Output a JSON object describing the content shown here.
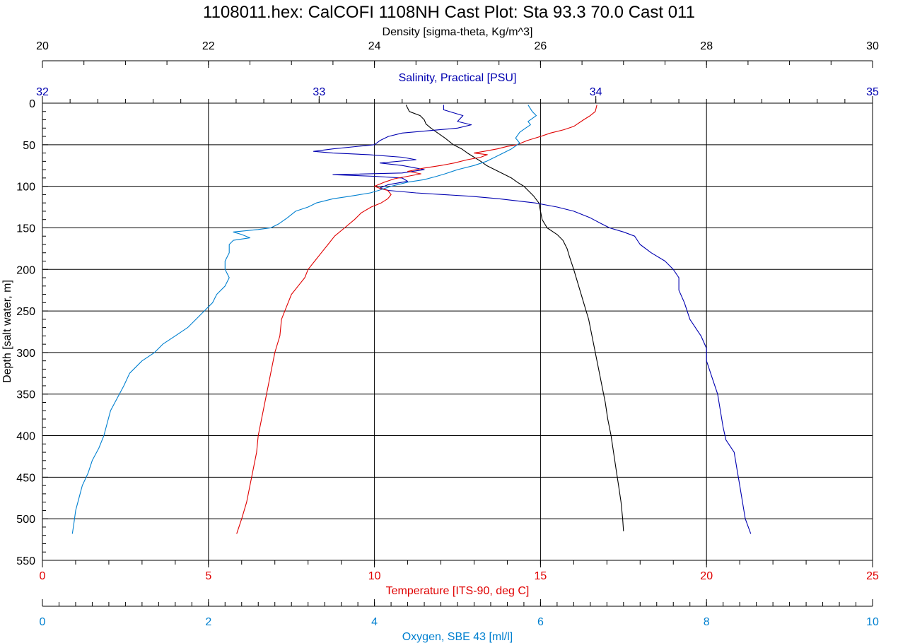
{
  "chart_data": {
    "type": "line",
    "title": "1108011.hex: CalCOFI 1108NH Cast Plot: Sta 93.3 70.0 Cast 011",
    "ylabel": "Depth [salt water, m]",
    "ylim": [
      0,
      550
    ],
    "y_reversed": true,
    "y_ticks": [
      0,
      50,
      100,
      150,
      200,
      250,
      300,
      350,
      400,
      450,
      500,
      550
    ],
    "grid": true,
    "axes": {
      "density": {
        "label": "Density [sigma-theta, Kg/m^3]",
        "range": [
          20,
          30
        ],
        "ticks": [
          20,
          22,
          24,
          26,
          28,
          30
        ],
        "position": "top",
        "color": "#000000"
      },
      "salinity": {
        "label": "Salinity, Practical [PSU]",
        "range": [
          32,
          35
        ],
        "ticks": [
          32,
          33,
          34,
          35
        ],
        "position": "top",
        "color": "#0000b0"
      },
      "temperature": {
        "label": "Temperature [ITS-90, deg C]",
        "range": [
          0,
          25
        ],
        "ticks": [
          0,
          5,
          10,
          15,
          20,
          25
        ],
        "position": "bottom",
        "color": "#e00000"
      },
      "oxygen": {
        "label": "Oxygen, SBE 43 [ml/l]",
        "range": [
          0,
          10
        ],
        "ticks": [
          0,
          2,
          4,
          6,
          8,
          10
        ],
        "position": "bottom",
        "color": "#0080d0"
      }
    },
    "series": [
      {
        "axis": "density",
        "color": "#000000",
        "points": [
          [
            24.38,
            2
          ],
          [
            24.42,
            10
          ],
          [
            24.55,
            15
          ],
          [
            24.6,
            20
          ],
          [
            24.62,
            25
          ],
          [
            24.68,
            30
          ],
          [
            24.75,
            35
          ],
          [
            24.85,
            42
          ],
          [
            24.95,
            50
          ],
          [
            25.05,
            55
          ],
          [
            25.12,
            60
          ],
          [
            25.2,
            65
          ],
          [
            25.28,
            70
          ],
          [
            25.35,
            75
          ],
          [
            25.45,
            80
          ],
          [
            25.55,
            85
          ],
          [
            25.65,
            90
          ],
          [
            25.72,
            95
          ],
          [
            25.8,
            100
          ],
          [
            25.85,
            105
          ],
          [
            25.92,
            112
          ],
          [
            25.98,
            120
          ],
          [
            26.0,
            130
          ],
          [
            26.02,
            140
          ],
          [
            26.08,
            150
          ],
          [
            26.2,
            158
          ],
          [
            26.27,
            165
          ],
          [
            26.32,
            175
          ],
          [
            26.35,
            185
          ],
          [
            26.4,
            200
          ],
          [
            26.46,
            220
          ],
          [
            26.52,
            240
          ],
          [
            26.58,
            260
          ],
          [
            26.62,
            280
          ],
          [
            26.66,
            300
          ],
          [
            26.7,
            320
          ],
          [
            26.74,
            340
          ],
          [
            26.78,
            360
          ],
          [
            26.81,
            380
          ],
          [
            26.85,
            400
          ],
          [
            26.88,
            420
          ],
          [
            26.91,
            440
          ],
          [
            26.94,
            460
          ],
          [
            26.97,
            480
          ],
          [
            26.99,
            500
          ],
          [
            27.0,
            515
          ]
        ]
      },
      {
        "axis": "salinity",
        "color": "#0000b0",
        "points": [
          [
            33.45,
            2
          ],
          [
            33.45,
            8
          ],
          [
            33.52,
            15
          ],
          [
            33.5,
            22
          ],
          [
            33.55,
            26
          ],
          [
            33.5,
            30
          ],
          [
            33.4,
            33
          ],
          [
            33.3,
            36
          ],
          [
            33.25,
            40
          ],
          [
            33.22,
            45
          ],
          [
            33.2,
            50
          ],
          [
            33.05,
            55
          ],
          [
            32.98,
            58
          ],
          [
            33.05,
            60
          ],
          [
            33.18,
            62
          ],
          [
            33.3,
            65
          ],
          [
            33.35,
            68
          ],
          [
            33.22,
            72
          ],
          [
            33.3,
            75
          ],
          [
            33.38,
            80
          ],
          [
            33.3,
            84
          ],
          [
            33.05,
            86
          ],
          [
            33.2,
            88
          ],
          [
            33.3,
            90
          ],
          [
            33.32,
            94
          ],
          [
            33.25,
            98
          ],
          [
            33.22,
            102
          ],
          [
            33.25,
            105
          ],
          [
            33.35,
            108
          ],
          [
            33.45,
            110
          ],
          [
            33.55,
            112
          ],
          [
            33.65,
            115
          ],
          [
            33.78,
            120
          ],
          [
            33.86,
            125
          ],
          [
            33.92,
            130
          ],
          [
            33.98,
            138
          ],
          [
            34.02,
            145
          ],
          [
            34.05,
            150
          ],
          [
            34.1,
            155
          ],
          [
            34.14,
            160
          ],
          [
            34.16,
            170
          ],
          [
            34.2,
            180
          ],
          [
            34.25,
            190
          ],
          [
            34.28,
            200
          ],
          [
            34.3,
            210
          ],
          [
            34.3,
            225
          ],
          [
            34.32,
            240
          ],
          [
            34.34,
            260
          ],
          [
            34.38,
            280
          ],
          [
            34.4,
            295
          ],
          [
            34.4,
            310
          ],
          [
            34.42,
            330
          ],
          [
            34.44,
            350
          ],
          [
            34.45,
            370
          ],
          [
            34.46,
            390
          ],
          [
            34.47,
            405
          ],
          [
            34.5,
            420
          ],
          [
            34.51,
            440
          ],
          [
            34.52,
            460
          ],
          [
            34.53,
            480
          ],
          [
            34.54,
            500
          ],
          [
            34.56,
            518
          ]
        ]
      },
      {
        "axis": "temperature",
        "color": "#e00000",
        "points": [
          [
            16.7,
            2
          ],
          [
            16.65,
            10
          ],
          [
            16.5,
            15
          ],
          [
            16.3,
            20
          ],
          [
            16.0,
            28
          ],
          [
            15.7,
            32
          ],
          [
            15.3,
            36
          ],
          [
            15.0,
            40
          ],
          [
            14.6,
            45
          ],
          [
            14.3,
            50
          ],
          [
            14.0,
            52
          ],
          [
            13.7,
            55
          ],
          [
            13.3,
            58
          ],
          [
            13.0,
            60
          ],
          [
            13.4,
            62
          ],
          [
            13.2,
            65
          ],
          [
            12.8,
            68
          ],
          [
            12.4,
            72
          ],
          [
            12.0,
            75
          ],
          [
            11.5,
            78
          ],
          [
            11.0,
            82
          ],
          [
            11.4,
            85
          ],
          [
            11.0,
            88
          ],
          [
            10.6,
            91
          ],
          [
            10.3,
            95
          ],
          [
            10.0,
            100
          ],
          [
            10.2,
            103
          ],
          [
            10.4,
            105
          ],
          [
            10.5,
            110
          ],
          [
            10.4,
            115
          ],
          [
            10.2,
            120
          ],
          [
            9.9,
            125
          ],
          [
            9.6,
            132
          ],
          [
            9.4,
            140
          ],
          [
            9.1,
            150
          ],
          [
            8.8,
            160
          ],
          [
            8.6,
            170
          ],
          [
            8.4,
            180
          ],
          [
            8.2,
            190
          ],
          [
            8.0,
            200
          ],
          [
            7.9,
            210
          ],
          [
            7.7,
            220
          ],
          [
            7.5,
            230
          ],
          [
            7.4,
            240
          ],
          [
            7.3,
            250
          ],
          [
            7.2,
            260
          ],
          [
            7.15,
            280
          ],
          [
            7.0,
            300
          ],
          [
            6.9,
            320
          ],
          [
            6.8,
            340
          ],
          [
            6.7,
            360
          ],
          [
            6.6,
            380
          ],
          [
            6.5,
            400
          ],
          [
            6.45,
            420
          ],
          [
            6.35,
            440
          ],
          [
            6.25,
            460
          ],
          [
            6.15,
            480
          ],
          [
            6.0,
            500
          ],
          [
            5.85,
            518
          ]
        ]
      },
      {
        "axis": "oxygen",
        "color": "#0080d0",
        "points": [
          [
            5.85,
            2
          ],
          [
            5.9,
            10
          ],
          [
            5.95,
            15
          ],
          [
            5.85,
            22
          ],
          [
            5.88,
            26
          ],
          [
            5.82,
            30
          ],
          [
            5.75,
            35
          ],
          [
            5.7,
            42
          ],
          [
            5.75,
            48
          ],
          [
            5.65,
            55
          ],
          [
            5.55,
            60
          ],
          [
            5.45,
            65
          ],
          [
            5.35,
            70
          ],
          [
            5.2,
            75
          ],
          [
            5.0,
            80
          ],
          [
            4.85,
            85
          ],
          [
            4.75,
            88
          ],
          [
            4.6,
            92
          ],
          [
            4.4,
            95
          ],
          [
            4.2,
            100
          ],
          [
            4.05,
            105
          ],
          [
            3.95,
            108
          ],
          [
            3.7,
            112
          ],
          [
            3.5,
            115
          ],
          [
            3.3,
            120
          ],
          [
            3.2,
            125
          ],
          [
            3.05,
            130
          ],
          [
            2.95,
            138
          ],
          [
            2.85,
            145
          ],
          [
            2.75,
            150
          ],
          [
            2.6,
            152
          ],
          [
            2.3,
            155
          ],
          [
            2.4,
            158
          ],
          [
            2.5,
            162
          ],
          [
            2.3,
            165
          ],
          [
            2.25,
            170
          ],
          [
            2.25,
            180
          ],
          [
            2.2,
            190
          ],
          [
            2.2,
            200
          ],
          [
            2.25,
            210
          ],
          [
            2.2,
            220
          ],
          [
            2.1,
            230
          ],
          [
            2.05,
            240
          ],
          [
            1.95,
            250
          ],
          [
            1.85,
            260
          ],
          [
            1.75,
            270
          ],
          [
            1.6,
            280
          ],
          [
            1.45,
            290
          ],
          [
            1.35,
            300
          ],
          [
            1.2,
            310
          ],
          [
            1.05,
            325
          ],
          [
            0.98,
            340
          ],
          [
            0.9,
            355
          ],
          [
            0.82,
            370
          ],
          [
            0.78,
            385
          ],
          [
            0.74,
            400
          ],
          [
            0.68,
            415
          ],
          [
            0.6,
            430
          ],
          [
            0.55,
            445
          ],
          [
            0.48,
            460
          ],
          [
            0.44,
            475
          ],
          [
            0.4,
            490
          ],
          [
            0.38,
            505
          ],
          [
            0.36,
            518
          ]
        ]
      }
    ]
  }
}
